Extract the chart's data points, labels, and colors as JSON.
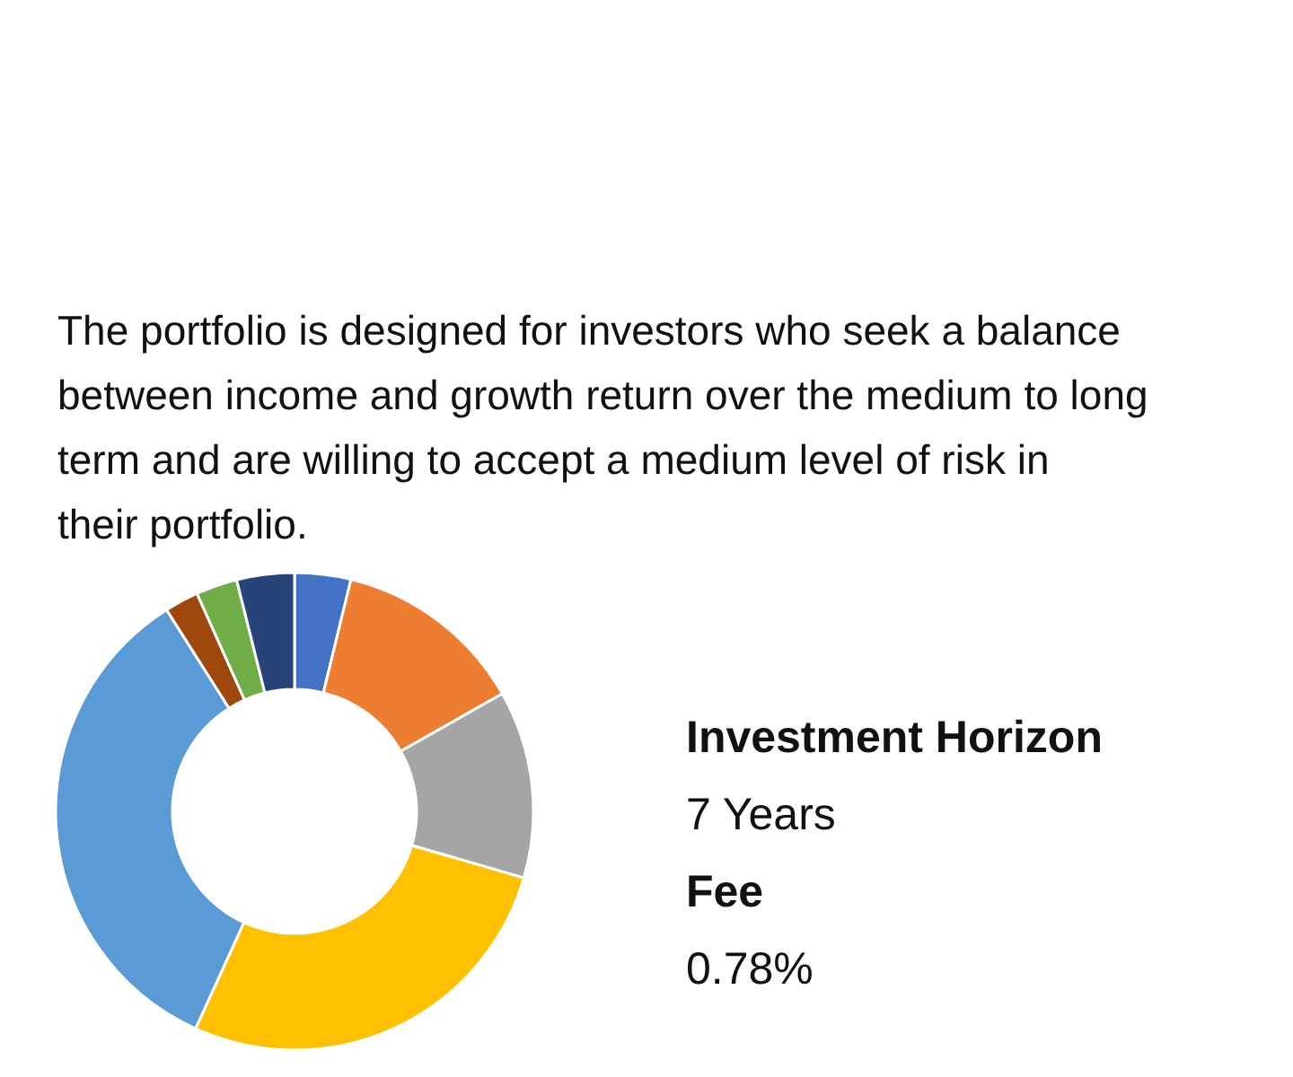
{
  "chart_data": {
    "type": "donut",
    "subtitle": "The portfolio is designed for investors who seek a balance between income and growth return over the medium to long term and are willing to accept a medium level of risk in their portfolio.",
    "categories": [
      null,
      null,
      null,
      null,
      null,
      null,
      null,
      null
    ],
    "values": [
      3.8,
      13,
      12.7,
      27.3,
      34.2,
      2.3,
      2.8,
      3.9
    ],
    "colors": [
      "#4472c4",
      "#ed7d31",
      "#a5a5a5",
      "#ffc000",
      "#5b9bd5",
      "#9e480e",
      "#70ad47",
      "#264478"
    ],
    "annotations": [
      "Investment Horizon",
      "7 Years",
      "Fee",
      "0.78%"
    ]
  }
}
